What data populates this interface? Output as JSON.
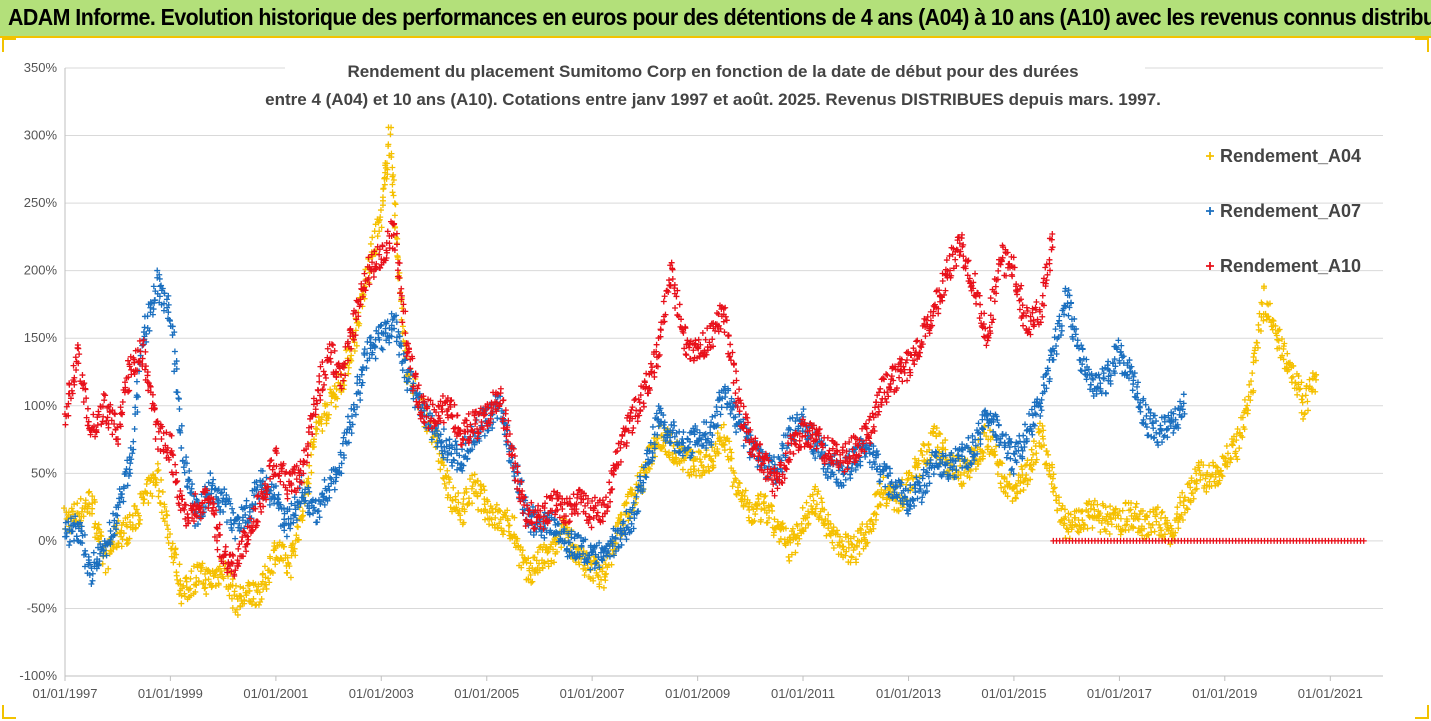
{
  "banner": {
    "title": "ADAM Informe. Evolution historique des performances en euros pour des détentions de 4 ans (A04) à 10 ans (A10) avec les revenus connus distribués"
  },
  "chart_data": {
    "type": "scatter",
    "title_line1": "Rendement du placement Sumitomo Corp en fonction de la date de début pour des durées",
    "title_line2": "entre 4 (A04) et 10 ans (A10). Cotations entre janv 1997 et août. 2025. Revenus DISTRIBUES depuis mars. 1997.",
    "y_ticks": [
      "350%",
      "300%",
      "250%",
      "200%",
      "150%",
      "100%",
      "50%",
      "0%",
      "-50%",
      "-100%"
    ],
    "ylim": [
      -100,
      350
    ],
    "x_ticks": [
      "01/01/1997",
      "01/01/1999",
      "01/01/2001",
      "01/01/2003",
      "01/01/2005",
      "01/01/2007",
      "01/01/2009",
      "01/01/2011",
      "01/01/2013",
      "01/01/2015",
      "01/01/2017",
      "01/01/2019",
      "01/01/2021"
    ],
    "xlim": [
      "1997-01-01",
      "2022-01-01"
    ],
    "grid": "horizontal",
    "legend_position": "right",
    "marker": "+",
    "series": [
      {
        "name": "Rendement_A04",
        "color": "#f5c000",
        "points": [
          [
            "1997-01-01",
            15
          ],
          [
            "1997-04-01",
            20
          ],
          [
            "1997-07-01",
            30
          ],
          [
            "1997-10-01",
            -15
          ],
          [
            "1998-01-01",
            5
          ],
          [
            "1998-04-01",
            10
          ],
          [
            "1998-07-01",
            30
          ],
          [
            "1998-10-01",
            50
          ],
          [
            "1999-01-01",
            0
          ],
          [
            "1999-04-01",
            -40
          ],
          [
            "1999-07-01",
            -25
          ],
          [
            "1999-10-01",
            -30
          ],
          [
            "2000-01-01",
            -20
          ],
          [
            "2000-04-01",
            -45
          ],
          [
            "2000-07-01",
            -40
          ],
          [
            "2000-10-01",
            -35
          ],
          [
            "2001-01-01",
            -5
          ],
          [
            "2001-04-01",
            -20
          ],
          [
            "2001-07-01",
            20
          ],
          [
            "2001-10-01",
            80
          ],
          [
            "2002-01-01",
            100
          ],
          [
            "2002-04-01",
            120
          ],
          [
            "2002-07-01",
            150
          ],
          [
            "2002-10-01",
            200
          ],
          [
            "2003-01-01",
            240
          ],
          [
            "2003-03-01",
            300
          ],
          [
            "2003-05-01",
            200
          ],
          [
            "2003-07-01",
            120
          ],
          [
            "2004-01-01",
            80
          ],
          [
            "2004-04-01",
            40
          ],
          [
            "2004-07-01",
            20
          ],
          [
            "2004-10-01",
            40
          ],
          [
            "2005-01-01",
            25
          ],
          [
            "2005-04-01",
            15
          ],
          [
            "2005-07-01",
            10
          ],
          [
            "2005-10-01",
            -25
          ],
          [
            "2006-01-01",
            -15
          ],
          [
            "2006-04-01",
            -10
          ],
          [
            "2006-07-01",
            10
          ],
          [
            "2006-10-01",
            -15
          ],
          [
            "2007-01-01",
            -20
          ],
          [
            "2007-04-01",
            -25
          ],
          [
            "2007-07-01",
            10
          ],
          [
            "2007-10-01",
            30
          ],
          [
            "2008-01-01",
            50
          ],
          [
            "2008-04-01",
            80
          ],
          [
            "2008-07-01",
            70
          ],
          [
            "2008-10-01",
            60
          ],
          [
            "2009-01-01",
            55
          ],
          [
            "2009-04-01",
            60
          ],
          [
            "2009-07-01",
            80
          ],
          [
            "2009-10-01",
            40
          ],
          [
            "2010-01-01",
            20
          ],
          [
            "2010-04-01",
            25
          ],
          [
            "2010-07-01",
            10
          ],
          [
            "2010-10-01",
            -5
          ],
          [
            "2011-01-01",
            15
          ],
          [
            "2011-04-01",
            30
          ],
          [
            "2011-07-01",
            10
          ],
          [
            "2011-10-01",
            -5
          ],
          [
            "2012-01-01",
            -5
          ],
          [
            "2012-04-01",
            10
          ],
          [
            "2012-07-01",
            40
          ],
          [
            "2012-10-01",
            30
          ],
          [
            "2013-01-01",
            40
          ],
          [
            "2013-04-01",
            60
          ],
          [
            "2013-07-01",
            75
          ],
          [
            "2013-10-01",
            60
          ],
          [
            "2014-01-01",
            50
          ],
          [
            "2014-04-01",
            60
          ],
          [
            "2014-07-01",
            80
          ],
          [
            "2014-10-01",
            50
          ],
          [
            "2015-01-01",
            35
          ],
          [
            "2015-04-01",
            50
          ],
          [
            "2015-07-01",
            80
          ],
          [
            "2015-10-01",
            40
          ],
          [
            "2016-01-01",
            10
          ],
          [
            "2016-04-01",
            15
          ],
          [
            "2016-07-01",
            20
          ],
          [
            "2016-10-01",
            15
          ],
          [
            "2017-01-01",
            15
          ],
          [
            "2017-04-01",
            20
          ],
          [
            "2017-07-01",
            10
          ],
          [
            "2017-10-01",
            15
          ],
          [
            "2018-01-01",
            5
          ],
          [
            "2018-04-01",
            30
          ],
          [
            "2018-07-01",
            50
          ],
          [
            "2018-10-01",
            45
          ],
          [
            "2019-01-01",
            60
          ],
          [
            "2019-04-01",
            70
          ],
          [
            "2019-07-01",
            110
          ],
          [
            "2019-10-01",
            180
          ],
          [
            "2020-01-01",
            150
          ],
          [
            "2020-04-01",
            130
          ],
          [
            "2020-07-01",
            100
          ],
          [
            "2020-10-01",
            120
          ]
        ]
      },
      {
        "name": "Rendement_A07",
        "color": "#1a6fbf",
        "points": [
          [
            "1997-01-01",
            5
          ],
          [
            "1997-04-01",
            10
          ],
          [
            "1997-07-01",
            -25
          ],
          [
            "1997-10-01",
            -5
          ],
          [
            "1998-01-01",
            20
          ],
          [
            "1998-04-01",
            60
          ],
          [
            "1998-07-01",
            150
          ],
          [
            "1998-10-01",
            190
          ],
          [
            "1999-01-01",
            170
          ],
          [
            "1999-04-01",
            60
          ],
          [
            "1999-07-01",
            20
          ],
          [
            "1999-10-01",
            40
          ],
          [
            "2000-01-01",
            30
          ],
          [
            "2000-04-01",
            10
          ],
          [
            "2000-07-01",
            25
          ],
          [
            "2000-10-01",
            45
          ],
          [
            "2001-01-01",
            30
          ],
          [
            "2001-04-01",
            10
          ],
          [
            "2001-07-01",
            40
          ],
          [
            "2001-10-01",
            20
          ],
          [
            "2002-01-01",
            40
          ],
          [
            "2002-04-01",
            60
          ],
          [
            "2002-07-01",
            100
          ],
          [
            "2002-10-01",
            140
          ],
          [
            "2003-01-01",
            150
          ],
          [
            "2003-04-01",
            160
          ],
          [
            "2003-07-01",
            120
          ],
          [
            "2003-10-01",
            100
          ],
          [
            "2004-01-01",
            80
          ],
          [
            "2004-04-01",
            70
          ],
          [
            "2004-07-01",
            60
          ],
          [
            "2004-10-01",
            80
          ],
          [
            "2005-01-01",
            90
          ],
          [
            "2005-04-01",
            100
          ],
          [
            "2005-07-01",
            60
          ],
          [
            "2005-10-01",
            20
          ],
          [
            "2006-01-01",
            10
          ],
          [
            "2006-04-01",
            15
          ],
          [
            "2006-07-01",
            0
          ],
          [
            "2006-10-01",
            -5
          ],
          [
            "2007-01-01",
            -15
          ],
          [
            "2007-04-01",
            -10
          ],
          [
            "2007-07-01",
            5
          ],
          [
            "2007-10-01",
            15
          ],
          [
            "2008-01-01",
            50
          ],
          [
            "2008-04-01",
            90
          ],
          [
            "2008-07-01",
            80
          ],
          [
            "2008-10-01",
            70
          ],
          [
            "2009-01-01",
            75
          ],
          [
            "2009-04-01",
            80
          ],
          [
            "2009-07-01",
            110
          ],
          [
            "2009-10-01",
            90
          ],
          [
            "2010-01-01",
            70
          ],
          [
            "2010-04-01",
            60
          ],
          [
            "2010-07-01",
            50
          ],
          [
            "2010-10-01",
            80
          ],
          [
            "2011-01-01",
            90
          ],
          [
            "2011-04-01",
            70
          ],
          [
            "2011-07-01",
            55
          ],
          [
            "2011-10-01",
            50
          ],
          [
            "2012-01-01",
            60
          ],
          [
            "2012-04-01",
            70
          ],
          [
            "2012-07-01",
            50
          ],
          [
            "2012-10-01",
            40
          ],
          [
            "2013-01-01",
            30
          ],
          [
            "2013-04-01",
            40
          ],
          [
            "2013-07-01",
            60
          ],
          [
            "2013-10-01",
            55
          ],
          [
            "2014-01-01",
            60
          ],
          [
            "2014-04-01",
            70
          ],
          [
            "2014-07-01",
            90
          ],
          [
            "2014-10-01",
            80
          ],
          [
            "2015-01-01",
            60
          ],
          [
            "2015-04-01",
            80
          ],
          [
            "2015-07-01",
            100
          ],
          [
            "2015-10-01",
            140
          ],
          [
            "2016-01-01",
            180
          ],
          [
            "2016-04-01",
            140
          ],
          [
            "2016-07-01",
            110
          ],
          [
            "2016-10-01",
            120
          ],
          [
            "2017-01-01",
            140
          ],
          [
            "2017-04-01",
            120
          ],
          [
            "2017-07-01",
            90
          ],
          [
            "2017-10-01",
            80
          ],
          [
            "2018-01-01",
            90
          ],
          [
            "2018-04-01",
            100
          ]
        ]
      },
      {
        "name": "Rendement_A10",
        "color": "#e8101a",
        "points": [
          [
            "1997-01-01",
            90
          ],
          [
            "1997-04-01",
            140
          ],
          [
            "1997-07-01",
            80
          ],
          [
            "1997-10-01",
            100
          ],
          [
            "1998-01-01",
            80
          ],
          [
            "1998-04-01",
            130
          ],
          [
            "1998-07-01",
            140
          ],
          [
            "1998-10-01",
            80
          ],
          [
            "1999-01-01",
            70
          ],
          [
            "1999-04-01",
            20
          ],
          [
            "1999-07-01",
            25
          ],
          [
            "1999-10-01",
            30
          ],
          [
            "2000-01-01",
            -10
          ],
          [
            "2000-04-01",
            -20
          ],
          [
            "2000-07-01",
            10
          ],
          [
            "2000-10-01",
            30
          ],
          [
            "2001-01-01",
            60
          ],
          [
            "2001-04-01",
            40
          ],
          [
            "2001-07-01",
            50
          ],
          [
            "2001-10-01",
            100
          ],
          [
            "2002-01-01",
            140
          ],
          [
            "2002-04-01",
            120
          ],
          [
            "2002-07-01",
            160
          ],
          [
            "2002-10-01",
            200
          ],
          [
            "2003-01-01",
            210
          ],
          [
            "2003-04-01",
            230
          ],
          [
            "2003-07-01",
            140
          ],
          [
            "2003-10-01",
            100
          ],
          [
            "2004-01-01",
            90
          ],
          [
            "2004-04-01",
            100
          ],
          [
            "2004-07-01",
            80
          ],
          [
            "2004-10-01",
            85
          ],
          [
            "2005-01-01",
            90
          ],
          [
            "2005-04-01",
            110
          ],
          [
            "2005-07-01",
            60
          ],
          [
            "2005-10-01",
            20
          ],
          [
            "2006-01-01",
            15
          ],
          [
            "2006-04-01",
            30
          ],
          [
            "2006-07-01",
            20
          ],
          [
            "2006-10-01",
            30
          ],
          [
            "2007-01-01",
            20
          ],
          [
            "2007-04-01",
            25
          ],
          [
            "2007-07-01",
            60
          ],
          [
            "2007-10-01",
            90
          ],
          [
            "2008-01-01",
            110
          ],
          [
            "2008-04-01",
            140
          ],
          [
            "2008-07-01",
            200
          ],
          [
            "2008-10-01",
            150
          ],
          [
            "2009-01-01",
            140
          ],
          [
            "2009-04-01",
            150
          ],
          [
            "2009-07-01",
            170
          ],
          [
            "2009-10-01",
            110
          ],
          [
            "2010-01-01",
            70
          ],
          [
            "2010-04-01",
            60
          ],
          [
            "2010-07-01",
            40
          ],
          [
            "2010-10-01",
            70
          ],
          [
            "2011-01-01",
            80
          ],
          [
            "2011-04-01",
            75
          ],
          [
            "2011-07-01",
            65
          ],
          [
            "2011-10-01",
            60
          ],
          [
            "2012-01-01",
            70
          ],
          [
            "2012-04-01",
            80
          ],
          [
            "2012-07-01",
            110
          ],
          [
            "2012-10-01",
            120
          ],
          [
            "2013-01-01",
            130
          ],
          [
            "2013-04-01",
            150
          ],
          [
            "2013-07-01",
            170
          ],
          [
            "2013-10-01",
            200
          ],
          [
            "2014-01-01",
            220
          ],
          [
            "2014-04-01",
            190
          ],
          [
            "2014-07-01",
            150
          ],
          [
            "2014-10-01",
            210
          ],
          [
            "2015-01-01",
            200
          ],
          [
            "2015-04-01",
            160
          ],
          [
            "2015-07-01",
            170
          ],
          [
            "2015-10-01",
            230
          ]
        ],
        "flat_segment": {
          "from": "2015-10-01",
          "to": "2021-09-01",
          "value": 0
        }
      }
    ]
  }
}
